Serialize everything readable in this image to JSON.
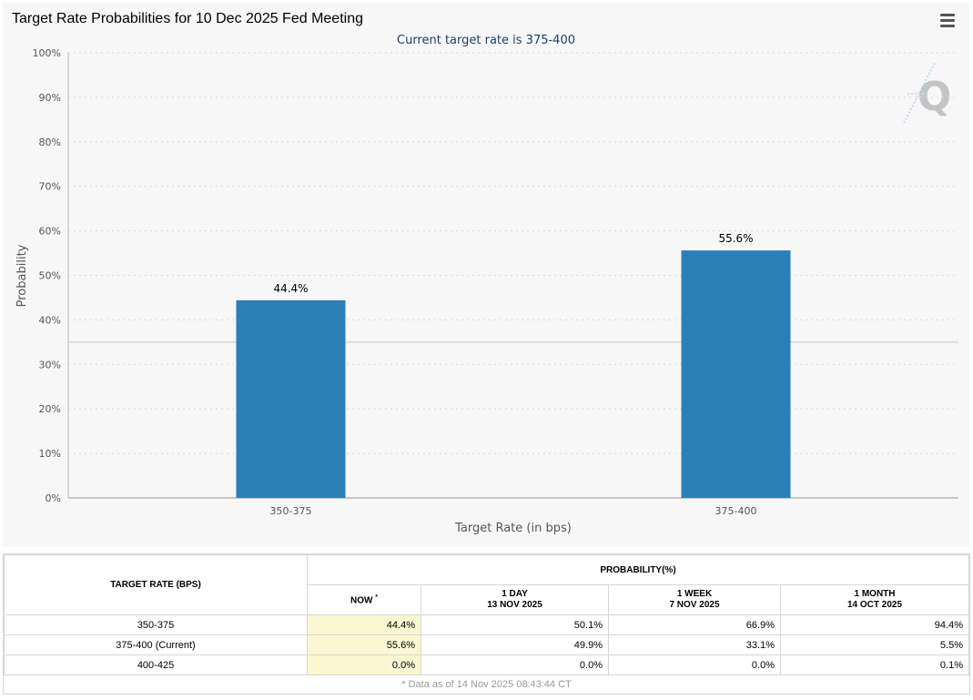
{
  "chart": {
    "title": "Target Rate Probabilities for 10 Dec 2025 Fed Meeting",
    "subtitle": "Current target rate is 375-400",
    "menu_icon": "hamburger-menu-icon",
    "watermark_icon": "q-logo-icon",
    "colors": {
      "bar": "#2b7fb9",
      "subtitle": "#1f3d66",
      "grid": "#d9d9d9"
    }
  },
  "chart_data": {
    "type": "bar",
    "title": "Target Rate Probabilities for 10 Dec 2025 Fed Meeting",
    "subtitle": "Current target rate is 375-400",
    "categories": [
      "350-375",
      "375-400"
    ],
    "values": [
      44.4,
      55.6
    ],
    "value_labels": [
      "44.4%",
      "55.6%"
    ],
    "xlabel": "Target Rate (in bps)",
    "ylabel": "Probability",
    "ylim": [
      0,
      100
    ],
    "yticks": [
      0,
      10,
      20,
      30,
      40,
      50,
      60,
      70,
      80,
      90,
      100
    ],
    "ytick_labels": [
      "0%",
      "10%",
      "20%",
      "30%",
      "40%",
      "50%",
      "60%",
      "70%",
      "80%",
      "90%",
      "100%"
    ],
    "reference_line": 35,
    "grid": true
  },
  "table": {
    "header_rate": "TARGET RATE (BPS)",
    "header_prob": "PROBABILITY(%)",
    "now_label": "NOW",
    "now_marker": "*",
    "col_1day": "1 DAY",
    "col_1day_date": "13 NOV 2025",
    "col_1week": "1 WEEK",
    "col_1week_date": "7 NOV 2025",
    "col_1month": "1 MONTH",
    "col_1month_date": "14 OCT 2025",
    "rows": [
      {
        "rate": "350-375",
        "now": "44.4%",
        "day": "50.1%",
        "week": "66.9%",
        "month": "94.4%"
      },
      {
        "rate": "375-400 (Current)",
        "now": "55.6%",
        "day": "49.9%",
        "week": "33.1%",
        "month": "5.5%"
      },
      {
        "rate": "400-425",
        "now": "0.0%",
        "day": "0.0%",
        "week": "0.0%",
        "month": "0.1%"
      }
    ],
    "footnote": "* Data as of 14 Nov 2025 08:43:44 CT"
  }
}
